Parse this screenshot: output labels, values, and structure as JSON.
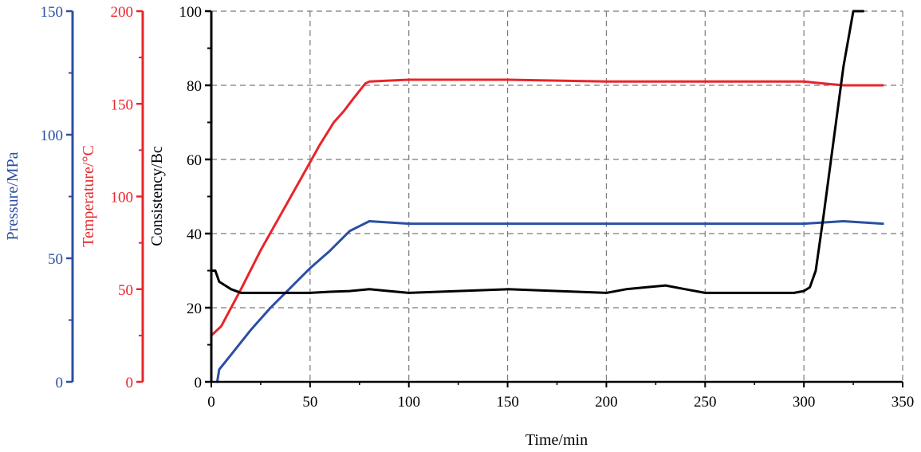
{
  "chart_data": {
    "type": "line",
    "xlabel": "Time/min",
    "xlim": [
      0,
      350
    ],
    "xticks": [
      "0",
      "50",
      "100",
      "150",
      "200",
      "250",
      "300",
      "350"
    ],
    "grid": true,
    "axes": {
      "pressure": {
        "label": "Pressure/MPa",
        "ylim": [
          0,
          150
        ],
        "ticks": [
          "0",
          "50",
          "100",
          "150"
        ],
        "color": "#2B4FA3"
      },
      "temperature": {
        "label": "Temperature/°C",
        "ylim": [
          0,
          200
        ],
        "ticks": [
          "0",
          "50",
          "100",
          "150",
          "200"
        ],
        "color": "#E8252A"
      },
      "consistency": {
        "label": "Consistency/Bc",
        "ylim": [
          0,
          100
        ],
        "ticks": [
          "0",
          "20",
          "40",
          "60",
          "80",
          "100"
        ],
        "color": "#000000"
      }
    },
    "series": [
      {
        "axis": "temperature",
        "color": "#E8252A",
        "points": [
          [
            0,
            25
          ],
          [
            5,
            30
          ],
          [
            15,
            50
          ],
          [
            25,
            71
          ],
          [
            35,
            90
          ],
          [
            45,
            109
          ],
          [
            55,
            128
          ],
          [
            62,
            140
          ],
          [
            67,
            146
          ],
          [
            72,
            153
          ],
          [
            78,
            161
          ],
          [
            80,
            162
          ],
          [
            100,
            163
          ],
          [
            150,
            163
          ],
          [
            200,
            162
          ],
          [
            250,
            162
          ],
          [
            300,
            162
          ],
          [
            310,
            161
          ],
          [
            320,
            160
          ],
          [
            330,
            160
          ],
          [
            340,
            160
          ]
        ]
      },
      {
        "axis": "pressure",
        "color": "#2B4FA3",
        "points": [
          [
            3,
            0
          ],
          [
            4,
            5
          ],
          [
            10,
            11
          ],
          [
            20,
            21
          ],
          [
            30,
            30
          ],
          [
            40,
            38
          ],
          [
            50,
            46
          ],
          [
            60,
            53
          ],
          [
            65,
            57
          ],
          [
            70,
            61
          ],
          [
            75,
            63
          ],
          [
            80,
            65
          ],
          [
            100,
            64
          ],
          [
            150,
            64
          ],
          [
            200,
            64
          ],
          [
            250,
            64
          ],
          [
            300,
            64
          ],
          [
            320,
            65
          ],
          [
            340,
            64
          ]
        ]
      },
      {
        "axis": "consistency",
        "color": "#000000",
        "points": [
          [
            0,
            30
          ],
          [
            2,
            30
          ],
          [
            4,
            27
          ],
          [
            10,
            25
          ],
          [
            15,
            24
          ],
          [
            30,
            24
          ],
          [
            50,
            24
          ],
          [
            60,
            24.3
          ],
          [
            70,
            24.5
          ],
          [
            80,
            25
          ],
          [
            90,
            24.5
          ],
          [
            100,
            24
          ],
          [
            150,
            25
          ],
          [
            200,
            24
          ],
          [
            210,
            25
          ],
          [
            220,
            25.5
          ],
          [
            230,
            26
          ],
          [
            240,
            25
          ],
          [
            250,
            24
          ],
          [
            270,
            24
          ],
          [
            295,
            24
          ],
          [
            300,
            24.5
          ],
          [
            303,
            25.5
          ],
          [
            306,
            30
          ],
          [
            310,
            45
          ],
          [
            315,
            65
          ],
          [
            320,
            85
          ],
          [
            325,
            100
          ],
          [
            330,
            100
          ]
        ]
      }
    ]
  }
}
